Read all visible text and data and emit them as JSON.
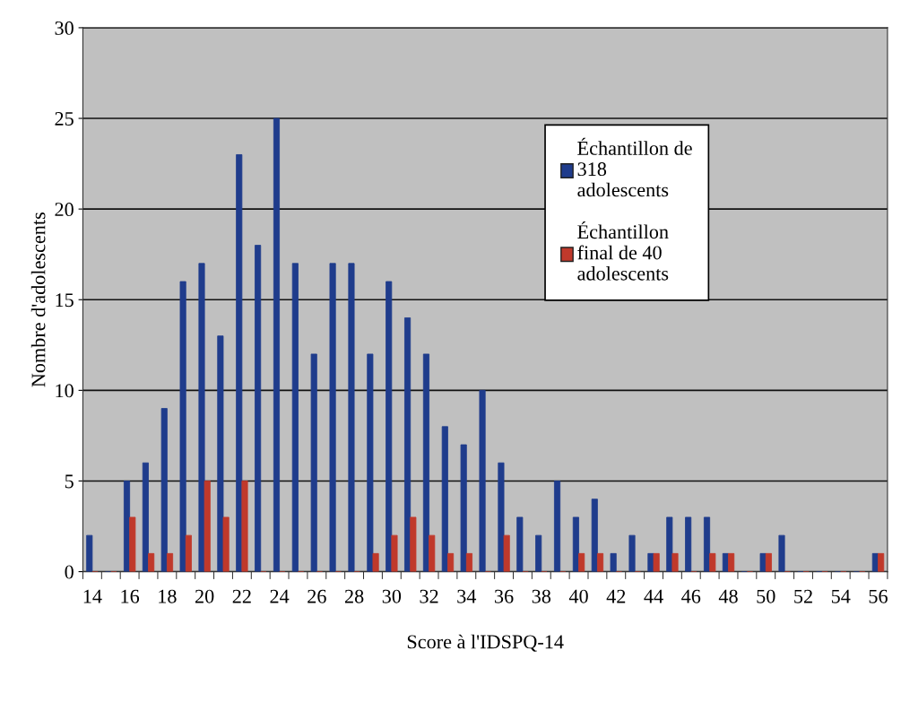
{
  "chart_data": {
    "type": "bar",
    "xlabel": "Score à l'IDSPQ-14",
    "ylabel": "Nombre d'adolescents",
    "categories": [
      "14",
      null,
      "16",
      null,
      "18",
      null,
      "20",
      null,
      "22",
      null,
      "24",
      null,
      "26",
      null,
      "28",
      null,
      "30",
      null,
      "32",
      null,
      "34",
      null,
      "36",
      null,
      "38",
      null,
      "40",
      null,
      "42",
      null,
      "44",
      null,
      "46",
      null,
      "48",
      null,
      "50",
      null,
      "52",
      null,
      "54",
      null,
      "56"
    ],
    "series": [
      {
        "name": "Échantillon de\n318\nadolescents",
        "color": "#1f3c8c",
        "values": [
          2,
          0,
          5,
          6,
          9,
          16,
          17,
          13,
          23,
          18,
          25,
          17,
          12,
          17,
          17,
          12,
          16,
          14,
          12,
          8,
          7,
          10,
          6,
          3,
          2,
          5,
          3,
          4,
          1,
          2,
          1,
          3,
          3,
          3,
          1,
          0,
          1,
          2,
          0,
          0,
          0,
          0,
          1
        ]
      },
      {
        "name": "Échantillon\nfinal de 40\nadolescents",
        "color": "#c0392b",
        "values": [
          0,
          0,
          3,
          1,
          1,
          2,
          5,
          3,
          5,
          0,
          0,
          0,
          0,
          0,
          0,
          1,
          2,
          3,
          2,
          1,
          1,
          0,
          2,
          0,
          0,
          0,
          1,
          1,
          0,
          0,
          1,
          1,
          0,
          1,
          1,
          0,
          1,
          0,
          0,
          0,
          0,
          0,
          1
        ]
      }
    ],
    "ylim": [
      0,
      30
    ],
    "yticks": [
      0,
      5,
      10,
      15,
      20,
      25,
      30
    ],
    "grid": "y",
    "legend": "right"
  }
}
